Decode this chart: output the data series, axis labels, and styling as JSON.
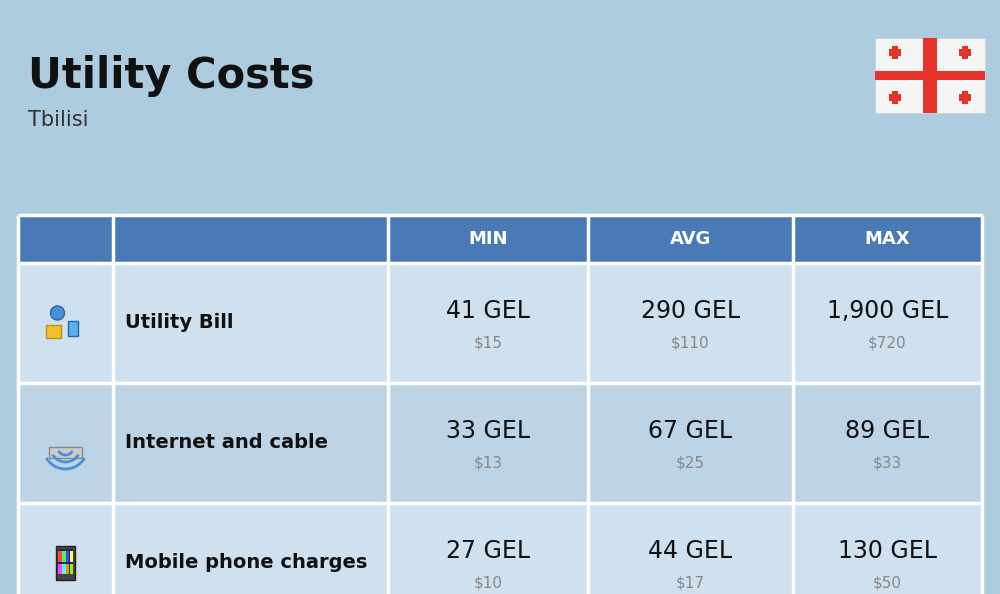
{
  "title": "Utility Costs",
  "subtitle": "Tbilisi",
  "background_color": "#aecce0",
  "header_bg_color": "#4a7ab5",
  "header_text_color": "#ffffff",
  "row_bg_color_odd": "#cfe0ee",
  "row_bg_color_even": "#bdd4e7",
  "col_headers": [
    "MIN",
    "AVG",
    "MAX"
  ],
  "rows": [
    {
      "label": "Utility Bill",
      "min_gel": "41 GEL",
      "min_usd": "$15",
      "avg_gel": "290 GEL",
      "avg_usd": "$110",
      "max_gel": "1,900 GEL",
      "max_usd": "$720"
    },
    {
      "label": "Internet and cable",
      "min_gel": "33 GEL",
      "min_usd": "$13",
      "avg_gel": "67 GEL",
      "avg_usd": "$25",
      "max_gel": "89 GEL",
      "max_usd": "$33"
    },
    {
      "label": "Mobile phone charges",
      "min_gel": "27 GEL",
      "min_usd": "$10",
      "avg_gel": "44 GEL",
      "avg_usd": "$17",
      "max_gel": "130 GEL",
      "max_usd": "$50"
    }
  ],
  "title_fontsize": 30,
  "subtitle_fontsize": 15,
  "header_fontsize": 13,
  "gel_fontsize": 17,
  "usd_fontsize": 11,
  "label_fontsize": 14,
  "usd_color": "#888888",
  "label_color": "#111111",
  "gel_color": "#111111",
  "flag_red": "#e63329",
  "flag_white": "#f5f5f5"
}
